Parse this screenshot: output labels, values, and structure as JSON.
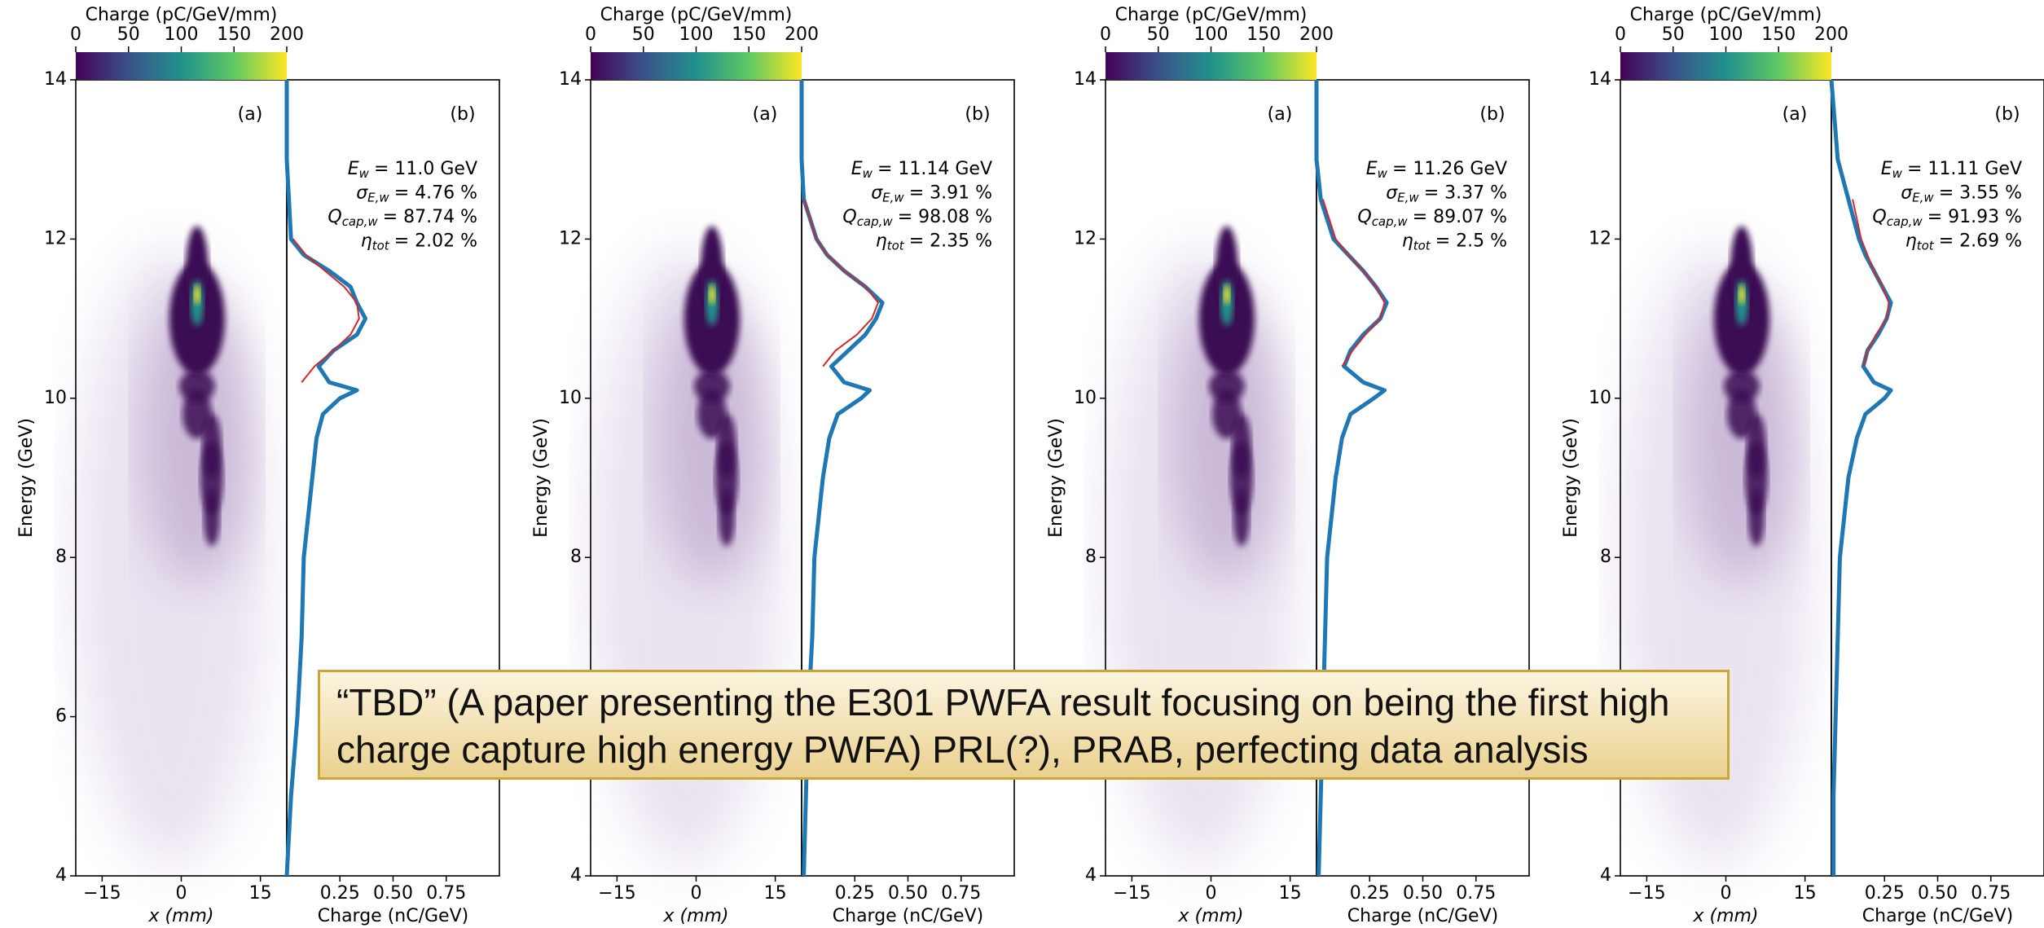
{
  "chart_data": [
    {
      "type": "line",
      "colorbar": {
        "label": "Charge (pC/GeV/mm)",
        "lim": [
          0,
          200
        ],
        "ticks": [
          0,
          50,
          100,
          150,
          200
        ]
      },
      "image": {
        "label": "(a)",
        "xlabel": "x (mm)",
        "xlim": [
          -20,
          20
        ],
        "xticks": [
          {
            "value": -15,
            "label": "−15"
          },
          0,
          15
        ],
        "ylabel": "Energy (GeV)"
      },
      "label": "(b)",
      "xlabel": "Charge (nC/GeV)",
      "xlim": [
        0,
        1
      ],
      "xticks": [
        0.25,
        {
          "value": 0.5,
          "label": "0.50"
        },
        0.75
      ],
      "ylim": [
        4,
        14
      ],
      "yticks": [
        4,
        6,
        8,
        10,
        12,
        14
      ],
      "x": [
        4,
        5,
        6,
        7,
        8,
        8.5,
        9,
        9.5,
        9.8,
        10,
        10.1,
        10.2,
        10.4,
        10.6,
        10.8,
        11,
        11.2,
        11.4,
        11.6,
        11.8,
        12,
        12.5,
        13,
        14
      ],
      "series": [
        {
          "color": "#1f77b4",
          "values": [
            0,
            0.02,
            0.05,
            0.07,
            0.08,
            0.1,
            0.12,
            0.14,
            0.17,
            0.25,
            0.33,
            0.2,
            0.15,
            0.22,
            0.33,
            0.37,
            0.33,
            0.3,
            0.2,
            0.08,
            0.02,
            0.01,
            0,
            0
          ]
        },
        {
          "color": "#d62728",
          "values": [
            null,
            null,
            null,
            null,
            null,
            null,
            null,
            null,
            null,
            null,
            null,
            0.07,
            0.13,
            0.22,
            0.3,
            0.34,
            0.33,
            0.27,
            0.18,
            0.09,
            0.03,
            null,
            null,
            null
          ]
        }
      ],
      "annotations": [
        {
          "symbol": "E",
          "sub": "w",
          "text": "= 11.0 GeV"
        },
        {
          "symbol": "σ",
          "sub": "E,w",
          "text": "= 4.76 %"
        },
        {
          "symbol": "Q",
          "sub": "cap,w",
          "text": "= 87.74 %"
        },
        {
          "symbol": "η",
          "sub": "tot",
          "text": "= 2.02 %"
        }
      ]
    },
    {
      "type": "line",
      "colorbar": {
        "label": "Charge (pC/GeV/mm)",
        "lim": [
          0,
          200
        ],
        "ticks": [
          0,
          50,
          100,
          150,
          200
        ]
      },
      "image": {
        "label": "(a)",
        "xlabel": "x (mm)",
        "xlim": [
          -20,
          20
        ],
        "xticks": [
          {
            "value": -15,
            "label": "−15"
          },
          0,
          15
        ],
        "ylabel": "Energy (GeV)"
      },
      "label": "(b)",
      "xlabel": "Charge (nC/GeV)",
      "xlim": [
        0,
        1
      ],
      "xticks": [
        0.25,
        {
          "value": 0.5,
          "label": "0.50"
        },
        0.75
      ],
      "ylim": [
        4,
        14
      ],
      "yticks": [
        4,
        6,
        8,
        10,
        12,
        14
      ],
      "x": [
        4,
        5,
        6,
        7,
        8,
        8.5,
        9,
        9.5,
        9.8,
        10,
        10.1,
        10.2,
        10.4,
        10.6,
        10.8,
        11,
        11.2,
        11.4,
        11.6,
        11.8,
        12,
        12.5,
        13,
        14
      ],
      "series": [
        {
          "color": "#1f77b4",
          "values": [
            0.01,
            0.02,
            0.03,
            0.05,
            0.06,
            0.08,
            0.1,
            0.13,
            0.17,
            0.28,
            0.32,
            0.2,
            0.14,
            0.22,
            0.3,
            0.35,
            0.38,
            0.3,
            0.2,
            0.12,
            0.07,
            0.01,
            0,
            0
          ]
        },
        {
          "color": "#d62728",
          "values": [
            null,
            null,
            null,
            null,
            null,
            null,
            null,
            null,
            null,
            null,
            null,
            null,
            0.1,
            0.16,
            0.26,
            0.33,
            0.36,
            0.3,
            0.2,
            0.12,
            0.07,
            0.01,
            null,
            null
          ]
        }
      ],
      "annotations": [
        {
          "symbol": "E",
          "sub": "w",
          "text": "= 11.14 GeV"
        },
        {
          "symbol": "σ",
          "sub": "E,w",
          "text": "= 3.91 %"
        },
        {
          "symbol": "Q",
          "sub": "cap,w",
          "text": "= 98.08 %"
        },
        {
          "symbol": "η",
          "sub": "tot",
          "text": "= 2.35 %"
        }
      ]
    },
    {
      "type": "line",
      "colorbar": {
        "label": "Charge (pC/GeV/mm)",
        "lim": [
          0,
          200
        ],
        "ticks": [
          0,
          50,
          100,
          150,
          200
        ]
      },
      "image": {
        "label": "(a)",
        "xlabel": "x (mm)",
        "xlim": [
          -20,
          20
        ],
        "xticks": [
          {
            "value": -15,
            "label": "−15"
          },
          0,
          15
        ],
        "ylabel": "Energy (GeV)"
      },
      "label": "(b)",
      "xlabel": "Charge (nC/GeV)",
      "xlim": [
        0,
        1
      ],
      "xticks": [
        0.25,
        {
          "value": 0.5,
          "label": "0.50"
        },
        0.75
      ],
      "ylim": [
        4,
        14
      ],
      "yticks": [
        4,
        6,
        8,
        10,
        12,
        14
      ],
      "x": [
        4,
        5,
        6,
        7,
        8,
        8.5,
        9,
        9.5,
        9.8,
        10,
        10.1,
        10.2,
        10.4,
        10.6,
        10.8,
        11,
        11.2,
        11.4,
        11.6,
        11.8,
        12,
        12.5,
        13,
        14
      ],
      "series": [
        {
          "color": "#1f77b4",
          "values": [
            0.01,
            0.02,
            0.03,
            0.04,
            0.05,
            0.07,
            0.09,
            0.12,
            0.16,
            0.27,
            0.32,
            0.22,
            0.13,
            0.16,
            0.22,
            0.3,
            0.33,
            0.28,
            0.22,
            0.15,
            0.08,
            0.02,
            0,
            0
          ]
        },
        {
          "color": "#d62728",
          "values": [
            null,
            null,
            null,
            null,
            null,
            null,
            null,
            null,
            null,
            null,
            null,
            null,
            0.12,
            0.17,
            0.23,
            0.3,
            0.32,
            0.28,
            0.22,
            0.15,
            0.09,
            0.03,
            null,
            null
          ]
        }
      ],
      "annotations": [
        {
          "symbol": "E",
          "sub": "w",
          "text": "= 11.26 GeV"
        },
        {
          "symbol": "σ",
          "sub": "E,w",
          "text": "= 3.37 %"
        },
        {
          "symbol": "Q",
          "sub": "cap,w",
          "text": "= 89.07 %"
        },
        {
          "symbol": "η",
          "sub": "tot",
          "text": "= 2.5 %"
        }
      ]
    },
    {
      "type": "line",
      "colorbar": {
        "label": "Charge (pC/GeV/mm)",
        "lim": [
          0,
          200
        ],
        "ticks": [
          0,
          50,
          100,
          150,
          200
        ]
      },
      "image": {
        "label": "(a)",
        "xlabel": "x (mm)",
        "xlim": [
          -20,
          20
        ],
        "xticks": [
          {
            "value": -15,
            "label": "−15"
          },
          0,
          15
        ],
        "ylabel": "Energy (GeV)"
      },
      "label": "(b)",
      "xlabel": "Charge (nC/GeV)",
      "xlim": [
        0,
        1
      ],
      "xticks": [
        0.25,
        {
          "value": 0.5,
          "label": "0.50"
        },
        0.75
      ],
      "ylim": [
        4,
        14
      ],
      "yticks": [
        4,
        6,
        8,
        10,
        12,
        14
      ],
      "x": [
        4,
        5,
        6,
        7,
        8,
        8.5,
        9,
        9.5,
        9.8,
        10,
        10.1,
        10.2,
        10.4,
        10.6,
        10.8,
        11,
        11.2,
        11.4,
        11.6,
        11.8,
        12,
        12.5,
        13,
        14
      ],
      "series": [
        {
          "color": "#1f77b4",
          "values": [
            0.01,
            0.01,
            0.02,
            0.03,
            0.04,
            0.06,
            0.08,
            0.12,
            0.16,
            0.25,
            0.28,
            0.2,
            0.15,
            0.17,
            0.22,
            0.26,
            0.28,
            0.24,
            0.2,
            0.16,
            0.13,
            0.08,
            0.03,
            0
          ]
        },
        {
          "color": "#d62728",
          "values": [
            null,
            null,
            null,
            null,
            null,
            null,
            null,
            null,
            null,
            null,
            null,
            null,
            0.15,
            0.17,
            0.21,
            0.26,
            0.27,
            0.24,
            0.2,
            0.17,
            0.14,
            0.1,
            null,
            null
          ]
        }
      ],
      "annotations": [
        {
          "symbol": "E",
          "sub": "w",
          "text": "= 11.11 GeV"
        },
        {
          "symbol": "σ",
          "sub": "E,w",
          "text": "= 3.55 %"
        },
        {
          "symbol": "Q",
          "sub": "cap,w",
          "text": "= 91.93 %"
        },
        {
          "symbol": "η",
          "sub": "tot",
          "text": "= 2.69 %"
        }
      ]
    }
  ],
  "text_box": {
    "lines": [
      "“TBD” (A paper presenting the E301 PWFA result focusing on being the first high",
      "charge capture high energy PWFA) PRL(?), PRAB, perfecting data analysis"
    ]
  }
}
